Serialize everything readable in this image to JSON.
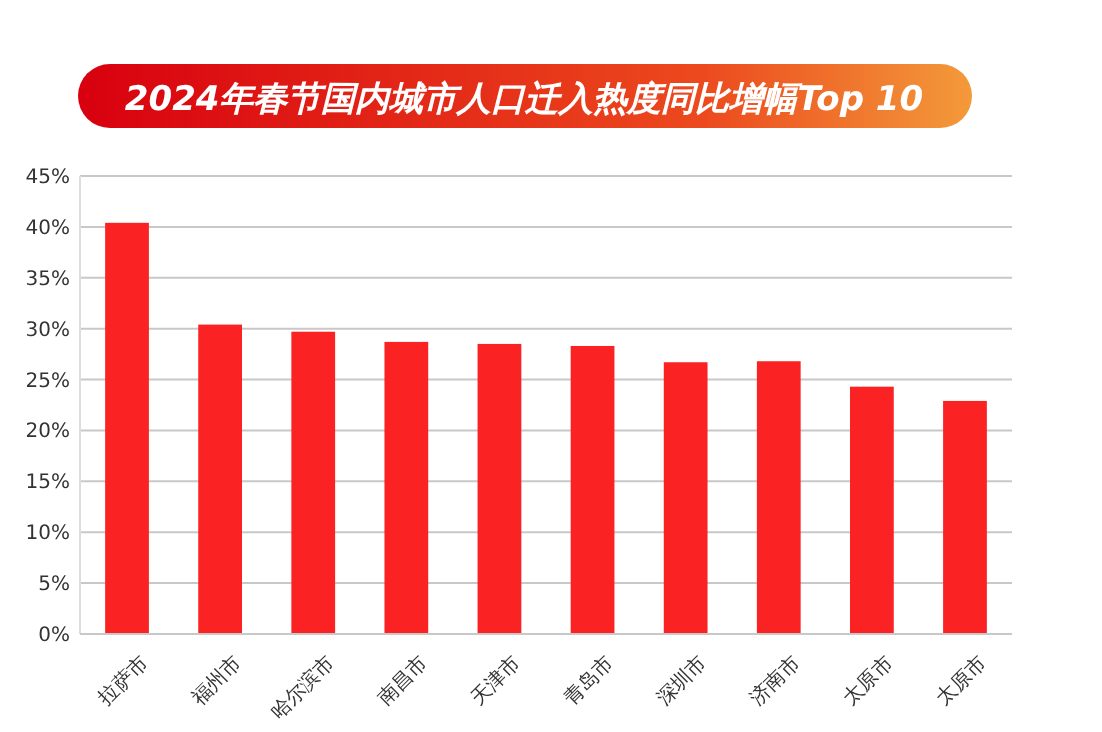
{
  "chart_data": {
    "type": "bar",
    "title": "2024年春节国内城市人口迁入热度同比增幅Top 10",
    "categories": [
      "拉萨市",
      "福州市",
      "哈尔滨市",
      "南昌市",
      "天津市",
      "青岛市",
      "深圳市",
      "济南市",
      "太原市",
      "太原市"
    ],
    "values": [
      40.4,
      30.4,
      29.7,
      28.7,
      28.5,
      28.3,
      26.7,
      26.8,
      24.3,
      22.9
    ],
    "color": "#fa2222",
    "ylim": [
      0,
      45
    ],
    "yticks": [
      {
        "value": 0,
        "label": "0%"
      },
      {
        "value": 5,
        "label": "5%"
      },
      {
        "value": 10,
        "label": "10%"
      },
      {
        "value": 15,
        "label": "15%"
      },
      {
        "value": 20,
        "label": "20%"
      },
      {
        "value": 25,
        "label": "25%"
      },
      {
        "value": 30,
        "label": "30%"
      },
      {
        "value": 35,
        "label": "35%"
      },
      {
        "value": 40,
        "label": "40%"
      },
      {
        "value": 45,
        "label": "45%"
      }
    ],
    "grid": "y"
  }
}
